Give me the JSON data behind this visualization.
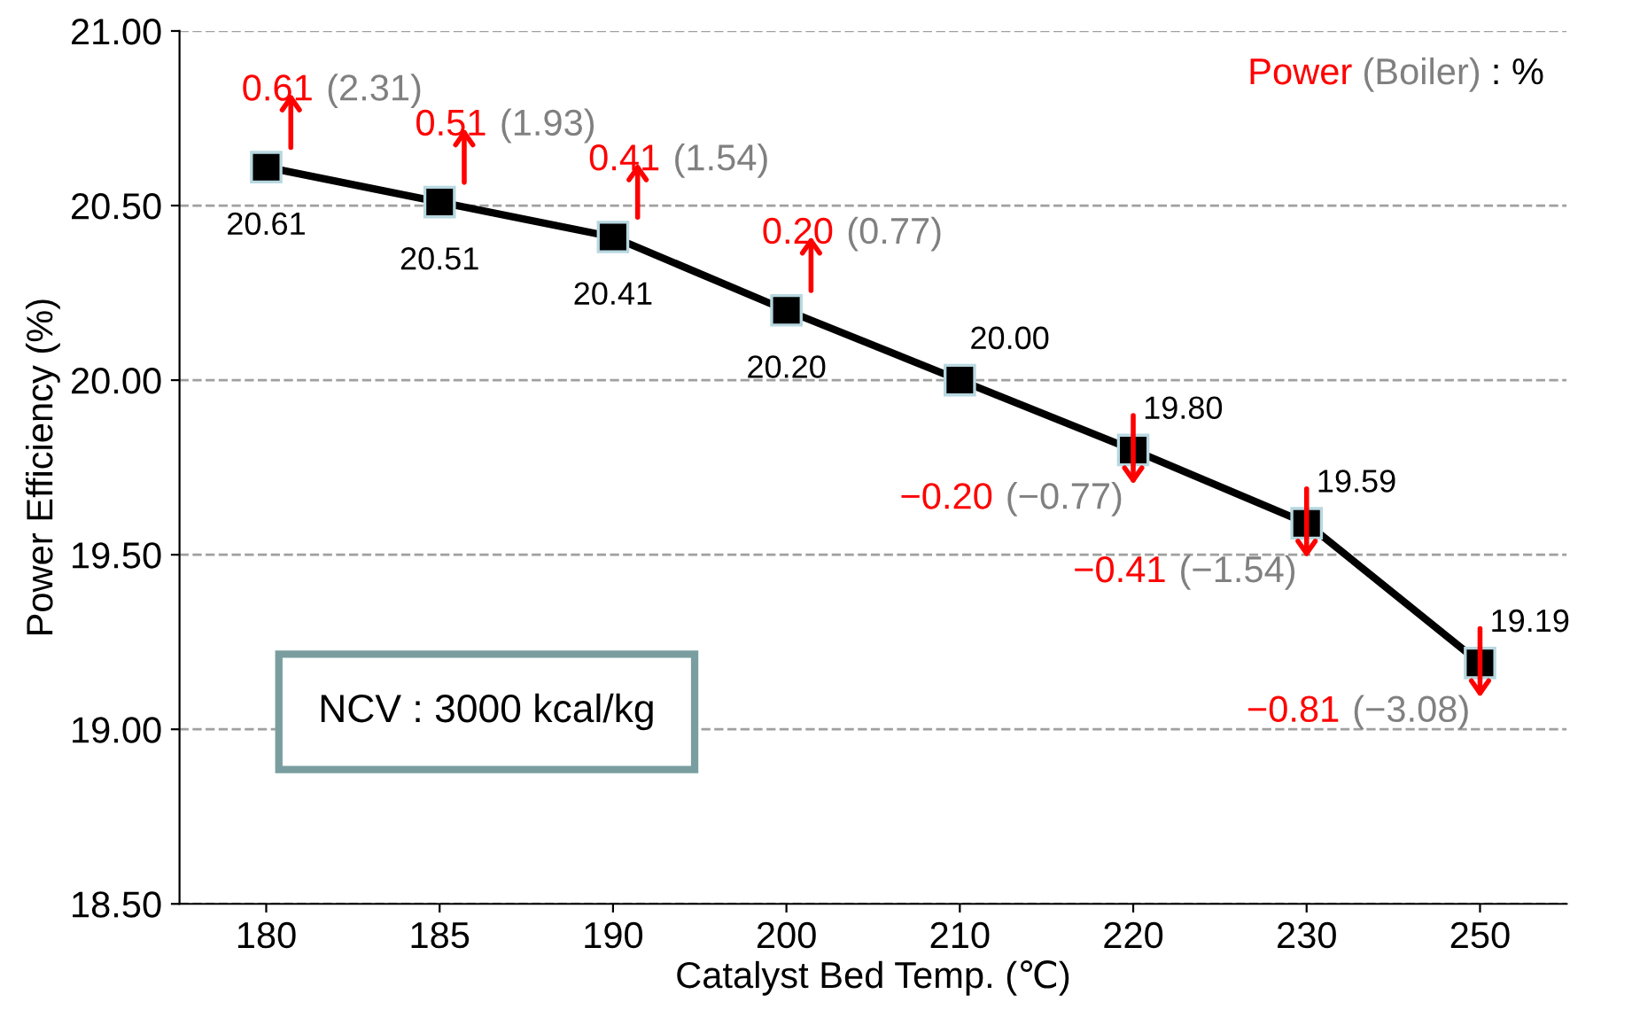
{
  "chart_data": {
    "type": "line",
    "xlabel": "Catalyst Bed Temp. (℃)",
    "ylabel": "Power Efficiency (%)",
    "categories": [
      "180",
      "185",
      "190",
      "200",
      "210",
      "220",
      "230",
      "250"
    ],
    "series": [
      {
        "color": "#000000",
        "values": [
          20.61,
          20.51,
          20.41,
          20.2,
          20.0,
          19.8,
          19.59,
          19.19
        ],
        "value_labels": [
          "20.61",
          "20.51",
          "20.41",
          "20.20",
          "20.00",
          "19.80",
          "19.59",
          "19.19"
        ]
      }
    ],
    "ylim": [
      18.5,
      21.0
    ],
    "yticks": [
      {
        "value": 18.5,
        "label": "18.50"
      },
      {
        "value": 19.0,
        "label": "19.00"
      },
      {
        "value": 19.5,
        "label": "19.50"
      },
      {
        "value": 20.0,
        "label": "20.00"
      },
      {
        "value": 20.5,
        "label": "20.50"
      },
      {
        "value": 21.0,
        "label": "21.00"
      }
    ],
    "grid": "y",
    "marker": "square",
    "line_style": "solid",
    "legend": false,
    "annotations": [
      "Power",
      "(Boiler)",
      ": %",
      "NCV : 3000 kcal/kg",
      {
        "text": "0.61",
        "x": "180",
        "y": 20.61
      },
      {
        "text": "(2.31)",
        "x": "180",
        "y": 20.61
      },
      {
        "text": "0.51",
        "x": "185",
        "y": 20.51
      },
      {
        "text": "(1.93)",
        "x": "185",
        "y": 20.51
      },
      {
        "text": "0.41",
        "x": "190",
        "y": 20.41
      },
      {
        "text": "(1.54)",
        "x": "190",
        "y": 20.41
      },
      {
        "text": "0.20",
        "x": "200",
        "y": 20.2
      },
      {
        "text": "(0.77)",
        "x": "200",
        "y": 20.2
      },
      "−0.20",
      {
        "text": "(−0.77)",
        "x": "220",
        "y": 19.8
      },
      "−0.41",
      {
        "text": "(−1.54)",
        "x": "230",
        "y": 19.59
      },
      "−0.81",
      {
        "text": "(−3.08)",
        "x": "250",
        "y": 19.19
      }
    ]
  }
}
